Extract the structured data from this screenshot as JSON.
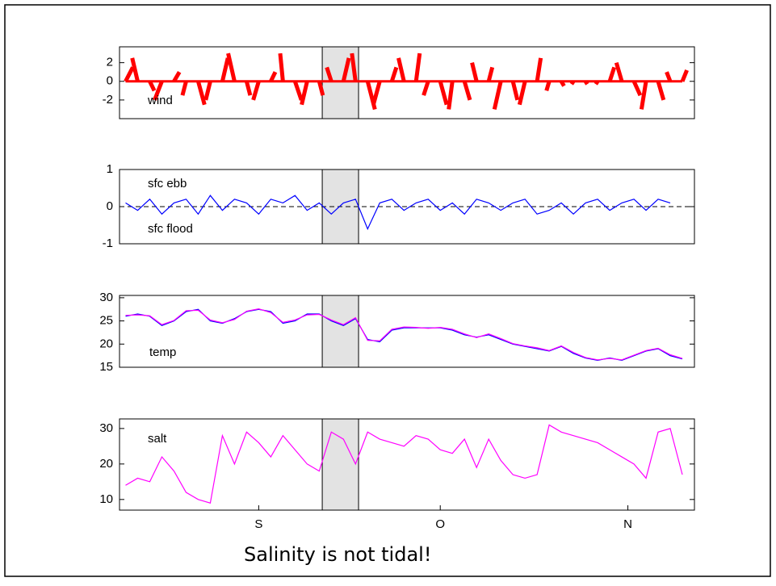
{
  "chart_data": [
    {
      "type": "stick",
      "annotations": [
        "wind"
      ],
      "color": "#ff0000",
      "x": [
        -22,
        -20,
        -18,
        -16,
        -14,
        -12,
        -10,
        -8,
        -6,
        -4,
        -2,
        0,
        2,
        4,
        6,
        8,
        10,
        12,
        14,
        16,
        18,
        20,
        22,
        24,
        26,
        28,
        30,
        32,
        34,
        36,
        38,
        40,
        42,
        44,
        46,
        48,
        50,
        52,
        54,
        56,
        58,
        60,
        62,
        64,
        66,
        68,
        70
      ],
      "u": [
        0.8,
        -0.6,
        0.5,
        -0.8,
        0.6,
        -0.4,
        0.7,
        -0.5,
        0.6,
        -0.7,
        0.4,
        -0.6,
        0.5,
        -0.3,
        0.7,
        -0.6,
        0.4,
        -0.5,
        0.6,
        -0.4,
        0.8,
        -0.7,
        0.5,
        -0.6,
        0.4,
        -0.5,
        0.7,
        -0.4,
        0.6,
        -0.5,
        0.4,
        -0.7,
        0.5,
        -0.6,
        0.4,
        -0.3,
        0.3,
        -0.2,
        0.2,
        -0.2,
        0.5,
        -0.6,
        0.7,
        -0.5,
        0.6,
        -0.4,
        0.5
      ],
      "v": [
        1.5,
        2.5,
        -1,
        -2,
        1,
        -1.5,
        -2.5,
        -2,
        2.5,
        3,
        -1.5,
        -2,
        1,
        3,
        -2,
        -2.5,
        -1.5,
        1.5,
        2.5,
        3,
        -3,
        -2.5,
        1.5,
        2.5,
        3,
        -1.5,
        -2.5,
        -3,
        -2,
        2,
        1.5,
        -3,
        -2,
        -2.5,
        2.5,
        -1,
        -0.5,
        -0.3,
        -0.3,
        -0.3,
        1.5,
        2,
        -1.5,
        -3,
        -2,
        1,
        1.2
      ],
      "xlim": [
        -23,
        72
      ],
      "ylim": [
        -4,
        3.7
      ],
      "yticks": [
        -2,
        0,
        2
      ],
      "highlight": [
        10.5,
        16.5
      ]
    },
    {
      "type": "line",
      "annotations": [
        "sfc ebb",
        "sfc flood"
      ],
      "zero_line": true,
      "x": [
        -22,
        -20,
        -18,
        -16,
        -14,
        -12,
        -10,
        -8,
        -6,
        -4,
        -2,
        0,
        2,
        4,
        6,
        8,
        10,
        12,
        14,
        16,
        18,
        20,
        22,
        24,
        26,
        28,
        30,
        32,
        34,
        36,
        38,
        40,
        42,
        44,
        46,
        48,
        50,
        52,
        54,
        56,
        58,
        60,
        62,
        64,
        66,
        68
      ],
      "series": [
        {
          "color": "#0000ff",
          "values": [
            0.1,
            -0.1,
            0.2,
            -0.2,
            0.1,
            0.2,
            -0.2,
            0.3,
            -0.1,
            0.2,
            0.1,
            -0.2,
            0.2,
            0.1,
            0.3,
            -0.1,
            0.1,
            -0.2,
            0.1,
            0.2,
            -0.6,
            0.1,
            0.2,
            -0.1,
            0.1,
            0.2,
            -0.1,
            0.1,
            -0.2,
            0.2,
            0.1,
            -0.1,
            0.1,
            0.2,
            -0.2,
            -0.1,
            0.1,
            -0.2,
            0.1,
            0.2,
            -0.1,
            0.1,
            0.2,
            -0.1,
            0.2,
            0.1
          ]
        }
      ],
      "xlim": [
        -23,
        72
      ],
      "ylim": [
        -1,
        1
      ],
      "yticks": [
        -1,
        0,
        1
      ],
      "highlight": [
        10.5,
        16.5
      ]
    },
    {
      "type": "line",
      "annotations": [
        "temp"
      ],
      "x": [
        -22,
        -20,
        -18,
        -16,
        -14,
        -12,
        -10,
        -8,
        -6,
        -4,
        -2,
        0,
        2,
        4,
        6,
        8,
        10,
        12,
        14,
        16,
        18,
        20,
        22,
        24,
        26,
        28,
        30,
        32,
        34,
        36,
        38,
        40,
        42,
        44,
        46,
        48,
        50,
        52,
        54,
        56,
        58,
        60,
        62,
        64,
        66,
        68,
        70
      ],
      "series": [
        {
          "color": "#0000ff",
          "values": [
            26,
            26.5,
            26,
            24,
            25,
            27,
            27.5,
            25,
            24.5,
            25.5,
            27,
            27.5,
            27,
            24.5,
            25,
            26.5,
            26.5,
            25,
            24,
            25.5,
            21,
            20.5,
            23,
            23.5,
            23.5,
            23.5,
            23.5,
            23,
            22,
            21.5,
            22,
            21,
            20,
            19.5,
            19,
            18.5,
            19.5,
            18,
            17,
            16.5,
            17,
            16.5,
            17.5,
            18.5,
            19,
            17.5,
            16.8
          ]
        },
        {
          "color": "#ff00ff",
          "values": [
            26.2,
            26.3,
            26.1,
            24.2,
            25.1,
            27.2,
            27.3,
            25.2,
            24.6,
            25.3,
            27.1,
            27.6,
            26.8,
            24.7,
            25.2,
            26.3,
            26.4,
            25.2,
            24.2,
            25.7,
            20.8,
            20.7,
            23.2,
            23.7,
            23.6,
            23.4,
            23.6,
            23.2,
            22.2,
            21.4,
            22.2,
            21.2,
            20.1,
            19.6,
            19.2,
            18.6,
            19.6,
            18.2,
            17.1,
            16.6,
            16.9,
            16.6,
            17.6,
            18.6,
            19.1,
            17.7,
            16.9
          ]
        }
      ],
      "xlim": [
        -23,
        72
      ],
      "ylim": [
        15,
        30.5
      ],
      "yticks": [
        15,
        20,
        25,
        30
      ],
      "highlight": [
        10.5,
        16.5
      ]
    },
    {
      "type": "line",
      "annotations": [
        "salt"
      ],
      "x": [
        -22,
        -20,
        -18,
        -16,
        -14,
        -12,
        -10,
        -8,
        -6,
        -4,
        -2,
        0,
        2,
        4,
        6,
        8,
        10,
        12,
        14,
        16,
        18,
        20,
        22,
        24,
        26,
        28,
        30,
        32,
        34,
        36,
        38,
        40,
        42,
        44,
        46,
        48,
        50,
        52,
        54,
        56,
        58,
        60,
        62,
        64,
        66,
        68,
        70
      ],
      "series": [
        {
          "color": "#ff00ff",
          "values": [
            14,
            16,
            15,
            22,
            18,
            12,
            10,
            9,
            28,
            20,
            29,
            26,
            22,
            28,
            24,
            20,
            18,
            29,
            27,
            20,
            29,
            27,
            26,
            25,
            28,
            27,
            24,
            23,
            27,
            19,
            27,
            21,
            17,
            16,
            17,
            31,
            29,
            28,
            27,
            26,
            24,
            22,
            20,
            16,
            29,
            30,
            17
          ]
        }
      ],
      "xlim": [
        -23,
        72
      ],
      "ylim": [
        7,
        32.7
      ],
      "yticks": [
        10,
        20,
        30
      ],
      "highlight": [
        10.5,
        16.5
      ],
      "xticks": [
        {
          "value": 0,
          "label": "S"
        },
        {
          "value": 30,
          "label": "O"
        },
        {
          "value": 61,
          "label": "N"
        }
      ]
    }
  ],
  "caption": "Salinity is not tidal!"
}
